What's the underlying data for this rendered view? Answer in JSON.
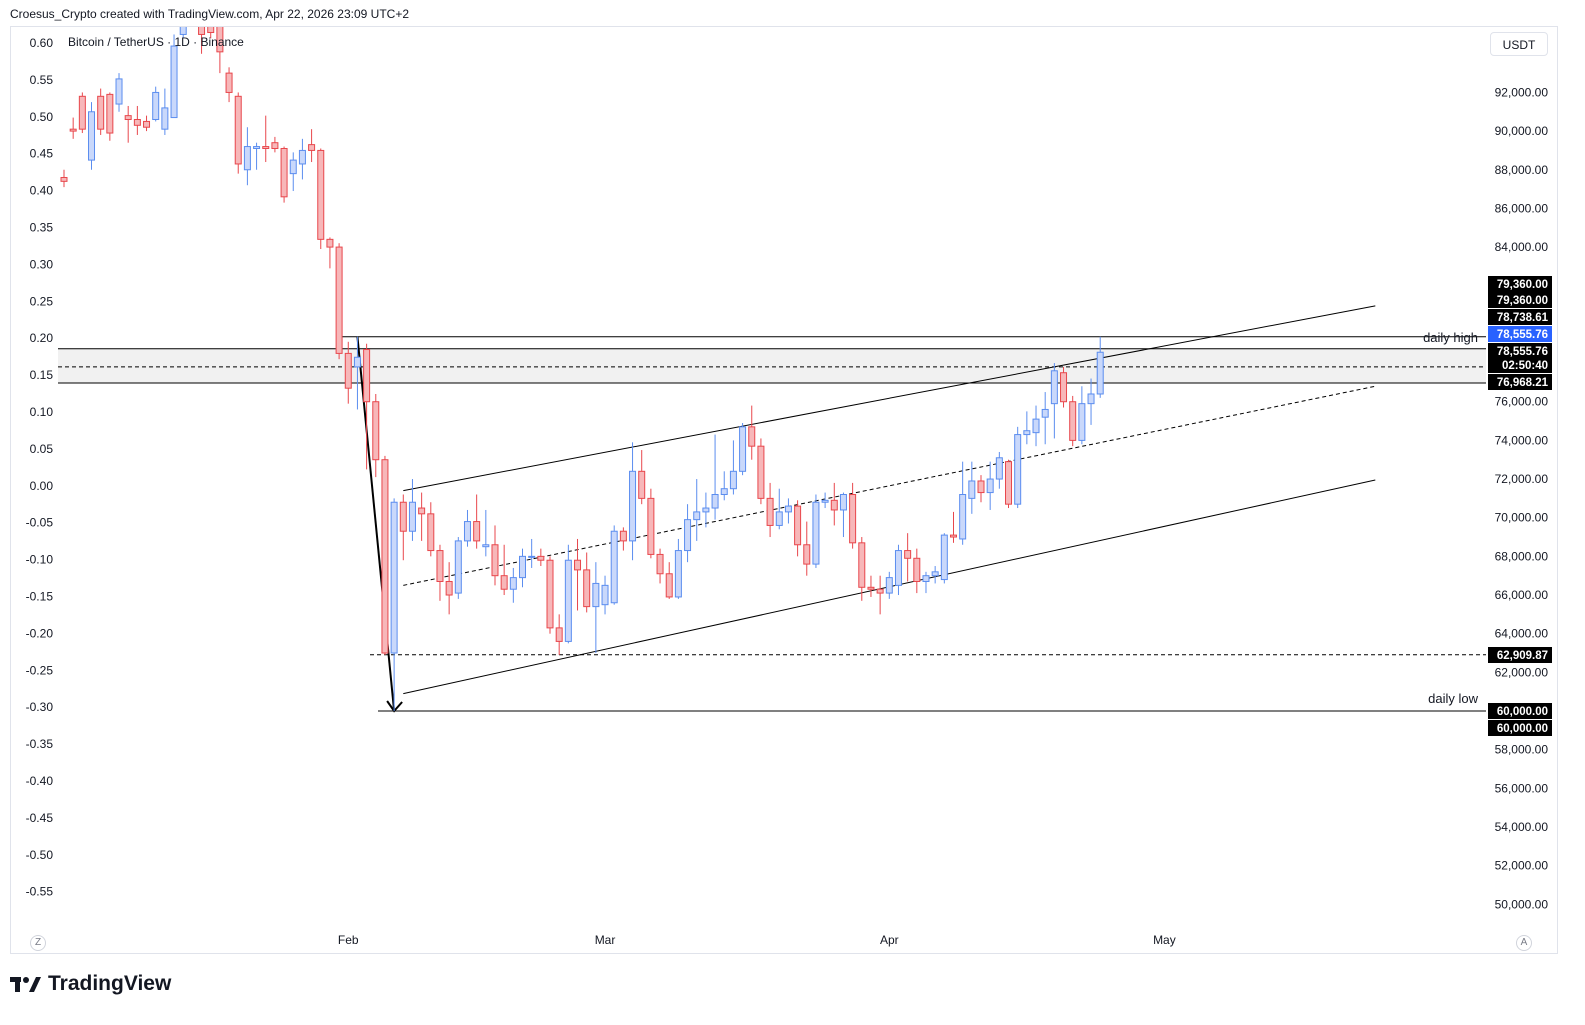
{
  "header": {
    "text": "Croesus_Crypto created with TradingView.com, Apr 22, 2026 23:09 UTC+2"
  },
  "legend": {
    "symbol": "Bitcoin / TetherUS · 1D · Binance"
  },
  "currency_button": "USDT",
  "footer": {
    "brand": "TradingView"
  },
  "corner_left": "Z",
  "corner_right": "A",
  "colors": {
    "up": "#5b8def",
    "up_fill": "#c9d8fb",
    "down": "#e8474c",
    "down_fill": "#f7b7b9",
    "zone": "#e6e6e6",
    "price_tag": "#000000",
    "current_tag": "#2962ff"
  },
  "chart_data": {
    "type": "candlestick",
    "left_axis": {
      "ticks": [
        "0.60",
        "0.55",
        "0.50",
        "0.45",
        "0.40",
        "0.35",
        "0.30",
        "0.25",
        "0.20",
        "0.15",
        "0.10",
        "0.05",
        "0.00",
        "-0.05",
        "-0.10",
        "-0.15",
        "-0.20",
        "-0.25",
        "-0.30",
        "-0.35",
        "-0.40",
        "-0.45",
        "-0.50",
        "-0.55"
      ]
    },
    "right_axis": {
      "ticks": [
        "92,000.00",
        "90,000.00",
        "88,000.00",
        "86,000.00",
        "84,000.00",
        "76,000.00",
        "74,000.00",
        "72,000.00",
        "70,000.00",
        "68,000.00",
        "66,000.00",
        "64,000.00",
        "62,000.00",
        "58,000.00",
        "56,000.00",
        "54,000.00",
        "52,000.00",
        "50,000.00"
      ],
      "price_labels": [
        {
          "text": "79,360.00",
          "value": 79360,
          "style": "black"
        },
        {
          "text": "79,360.00",
          "value": 79360,
          "style": "black"
        },
        {
          "text": "78,738.61",
          "value": 78738.61,
          "style": "black"
        },
        {
          "text": "78,555.76",
          "value": 78555.76,
          "style": "blue"
        },
        {
          "text": "78,555.76",
          "value": 78555.76,
          "style": "black"
        },
        {
          "text": "02:50:40",
          "value": null,
          "style": "black"
        },
        {
          "text": "76,968.21",
          "value": 76968.21,
          "style": "black"
        },
        {
          "text": "62,909.87",
          "value": 62909.87,
          "style": "black"
        },
        {
          "text": "60,000.00",
          "value": 60000,
          "style": "black"
        },
        {
          "text": "60,000.00",
          "value": 60000,
          "style": "black"
        }
      ]
    },
    "x_axis": {
      "labels": [
        "Feb",
        "Mar",
        "Apr",
        "May"
      ]
    },
    "annotations": [
      {
        "text": "daily high",
        "value": 79360
      },
      {
        "text": "daily low",
        "value": 60000
      }
    ],
    "zone": {
      "top": 78738.61,
      "mid": 77800,
      "bottom": 76968.21
    },
    "candles": [
      {
        "date": "2026-01-01",
        "o": 87600,
        "h": 88000,
        "l": 87100,
        "c": 87400
      },
      {
        "date": "2026-01-02",
        "o": 90100,
        "h": 90700,
        "l": 89600,
        "c": 90000
      },
      {
        "date": "2026-01-03",
        "o": 91800,
        "h": 92000,
        "l": 89900,
        "c": 90100
      },
      {
        "date": "2026-01-04",
        "o": 88500,
        "h": 91500,
        "l": 88000,
        "c": 91000
      },
      {
        "date": "2026-01-05",
        "o": 91800,
        "h": 92200,
        "l": 89800,
        "c": 90100
      },
      {
        "date": "2026-01-06",
        "o": 91900,
        "h": 92000,
        "l": 89500,
        "c": 89900
      },
      {
        "date": "2026-01-07",
        "o": 91400,
        "h": 93000,
        "l": 91000,
        "c": 92700
      },
      {
        "date": "2026-01-08",
        "o": 90800,
        "h": 91300,
        "l": 89400,
        "c": 90600
      },
      {
        "date": "2026-01-09",
        "o": 90600,
        "h": 91300,
        "l": 89800,
        "c": 90300
      },
      {
        "date": "2026-01-10",
        "o": 90500,
        "h": 90800,
        "l": 90000,
        "c": 90200
      },
      {
        "date": "2026-01-11",
        "o": 90600,
        "h": 92300,
        "l": 90500,
        "c": 92000
      },
      {
        "date": "2026-01-12",
        "o": 90100,
        "h": 92200,
        "l": 89800,
        "c": 91200
      },
      {
        "date": "2026-01-13",
        "o": 90700,
        "h": 95000,
        "l": 90700,
        "c": 94400
      },
      {
        "date": "2026-01-14",
        "o": 95000,
        "h": 97200,
        "l": 94800,
        "c": 96800
      },
      {
        "date": "2026-01-15",
        "o": 96300,
        "h": 97700,
        "l": 95600,
        "c": 96800
      },
      {
        "date": "2026-01-16",
        "o": 95600,
        "h": 96400,
        "l": 94000,
        "c": 95000
      },
      {
        "date": "2026-01-17",
        "o": 95700,
        "h": 96900,
        "l": 94800,
        "c": 95100
      },
      {
        "date": "2026-01-18",
        "o": 95500,
        "h": 96100,
        "l": 93000,
        "c": 94100
      },
      {
        "date": "2026-01-19",
        "o": 93000,
        "h": 93300,
        "l": 91500,
        "c": 92000
      },
      {
        "date": "2026-01-20",
        "o": 91800,
        "h": 92000,
        "l": 87800,
        "c": 88300
      },
      {
        "date": "2026-01-21",
        "o": 88000,
        "h": 90200,
        "l": 87200,
        "c": 89200
      },
      {
        "date": "2026-01-22",
        "o": 89100,
        "h": 89400,
        "l": 88000,
        "c": 89200
      },
      {
        "date": "2026-01-23",
        "o": 89200,
        "h": 90800,
        "l": 88400,
        "c": 89100
      },
      {
        "date": "2026-01-24",
        "o": 89400,
        "h": 89700,
        "l": 88900,
        "c": 89100
      },
      {
        "date": "2026-01-25",
        "o": 89100,
        "h": 89200,
        "l": 86300,
        "c": 86600
      },
      {
        "date": "2026-01-26",
        "o": 87800,
        "h": 88900,
        "l": 86900,
        "c": 88500
      },
      {
        "date": "2026-01-27",
        "o": 88300,
        "h": 89600,
        "l": 87500,
        "c": 89000
      },
      {
        "date": "2026-01-28",
        "o": 89300,
        "h": 90100,
        "l": 88400,
        "c": 89000
      },
      {
        "date": "2026-01-29",
        "o": 89000,
        "h": 89100,
        "l": 83900,
        "c": 84400
      },
      {
        "date": "2026-01-30",
        "o": 84400,
        "h": 84500,
        "l": 82900,
        "c": 84000
      },
      {
        "date": "2026-01-31",
        "o": 84000,
        "h": 84200,
        "l": 78200,
        "c": 78500
      },
      {
        "date": "2026-02-01",
        "o": 78500,
        "h": 79100,
        "l": 75900,
        "c": 76700
      },
      {
        "date": "2026-02-02",
        "o": 77800,
        "h": 79360,
        "l": 75600,
        "c": 78300
      },
      {
        "date": "2026-02-03",
        "o": 78700,
        "h": 79000,
        "l": 72500,
        "c": 76000
      },
      {
        "date": "2026-02-04",
        "o": 76000,
        "h": 76400,
        "l": 72100,
        "c": 73000
      },
      {
        "date": "2026-02-05",
        "o": 73000,
        "h": 73200,
        "l": 62900,
        "c": 63000
      },
      {
        "date": "2026-02-06",
        "o": 63000,
        "h": 71000,
        "l": 60000,
        "c": 70800
      },
      {
        "date": "2026-02-07",
        "o": 70800,
        "h": 71200,
        "l": 67800,
        "c": 69300
      },
      {
        "date": "2026-02-08",
        "o": 69300,
        "h": 72000,
        "l": 68800,
        "c": 70800
      },
      {
        "date": "2026-02-09",
        "o": 70500,
        "h": 71300,
        "l": 68800,
        "c": 70200
      },
      {
        "date": "2026-02-10",
        "o": 70200,
        "h": 70800,
        "l": 68000,
        "c": 68300
      },
      {
        "date": "2026-02-11",
        "o": 68300,
        "h": 68600,
        "l": 65700,
        "c": 66700
      },
      {
        "date": "2026-02-12",
        "o": 66700,
        "h": 67700,
        "l": 65000,
        "c": 66000
      },
      {
        "date": "2026-02-13",
        "o": 66100,
        "h": 69000,
        "l": 65800,
        "c": 68800
      },
      {
        "date": "2026-02-14",
        "o": 68800,
        "h": 70400,
        "l": 68500,
        "c": 69800
      },
      {
        "date": "2026-02-15",
        "o": 69800,
        "h": 71200,
        "l": 68400,
        "c": 68800
      },
      {
        "date": "2026-02-16",
        "o": 68500,
        "h": 70400,
        "l": 68000,
        "c": 68600
      },
      {
        "date": "2026-02-17",
        "o": 68600,
        "h": 69600,
        "l": 66500,
        "c": 67000
      },
      {
        "date": "2026-02-18",
        "o": 67000,
        "h": 68600,
        "l": 66000,
        "c": 66300
      },
      {
        "date": "2026-02-19",
        "o": 66300,
        "h": 67400,
        "l": 65600,
        "c": 66900
      },
      {
        "date": "2026-02-20",
        "o": 66900,
        "h": 68400,
        "l": 66400,
        "c": 68000
      },
      {
        "date": "2026-02-21",
        "o": 68000,
        "h": 68900,
        "l": 67400,
        "c": 68000
      },
      {
        "date": "2026-02-22",
        "o": 68000,
        "h": 68400,
        "l": 67500,
        "c": 67800
      },
      {
        "date": "2026-02-23",
        "o": 67800,
        "h": 68000,
        "l": 64000,
        "c": 64300
      },
      {
        "date": "2026-02-24",
        "o": 64300,
        "h": 65000,
        "l": 62900,
        "c": 63600
      },
      {
        "date": "2026-02-25",
        "o": 63600,
        "h": 68600,
        "l": 63500,
        "c": 67800
      },
      {
        "date": "2026-02-26",
        "o": 67800,
        "h": 68900,
        "l": 65200,
        "c": 67300
      },
      {
        "date": "2026-02-27",
        "o": 67300,
        "h": 68200,
        "l": 65100,
        "c": 65400
      },
      {
        "date": "2026-02-28",
        "o": 65400,
        "h": 67700,
        "l": 63000,
        "c": 66600
      },
      {
        "date": "2026-03-01",
        "o": 65500,
        "h": 67000,
        "l": 65000,
        "c": 66500
      },
      {
        "date": "2026-03-02",
        "o": 65600,
        "h": 69600,
        "l": 65500,
        "c": 69300
      },
      {
        "date": "2026-03-03",
        "o": 69300,
        "h": 69500,
        "l": 68300,
        "c": 68800
      },
      {
        "date": "2026-03-04",
        "o": 68800,
        "h": 73900,
        "l": 67800,
        "c": 72400
      },
      {
        "date": "2026-03-05",
        "o": 72400,
        "h": 73500,
        "l": 70700,
        "c": 71000
      },
      {
        "date": "2026-03-06",
        "o": 71000,
        "h": 71500,
        "l": 67900,
        "c": 68100
      },
      {
        "date": "2026-03-07",
        "o": 68100,
        "h": 68400,
        "l": 66600,
        "c": 67100
      },
      {
        "date": "2026-03-08",
        "o": 67100,
        "h": 67700,
        "l": 65800,
        "c": 65900
      },
      {
        "date": "2026-03-09",
        "o": 65900,
        "h": 68900,
        "l": 65800,
        "c": 68300
      },
      {
        "date": "2026-03-10",
        "o": 68300,
        "h": 70700,
        "l": 67700,
        "c": 69900
      },
      {
        "date": "2026-03-11",
        "o": 69900,
        "h": 72000,
        "l": 68800,
        "c": 70300
      },
      {
        "date": "2026-03-12",
        "o": 70300,
        "h": 71300,
        "l": 69500,
        "c": 70500
      },
      {
        "date": "2026-03-13",
        "o": 70500,
        "h": 74300,
        "l": 69900,
        "c": 71200
      },
      {
        "date": "2026-03-14",
        "o": 71200,
        "h": 72400,
        "l": 70900,
        "c": 71500
      },
      {
        "date": "2026-03-15",
        "o": 71500,
        "h": 74000,
        "l": 71200,
        "c": 72400
      },
      {
        "date": "2026-03-16",
        "o": 72400,
        "h": 74900,
        "l": 72200,
        "c": 74700
      },
      {
        "date": "2026-03-17",
        "o": 74700,
        "h": 75800,
        "l": 73000,
        "c": 73700
      },
      {
        "date": "2026-03-18",
        "o": 73700,
        "h": 74100,
        "l": 70700,
        "c": 71000
      },
      {
        "date": "2026-03-19",
        "o": 71000,
        "h": 71800,
        "l": 69000,
        "c": 69600
      },
      {
        "date": "2026-03-20",
        "o": 69600,
        "h": 71500,
        "l": 69400,
        "c": 70300
      },
      {
        "date": "2026-03-21",
        "o": 70300,
        "h": 71000,
        "l": 69700,
        "c": 70600
      },
      {
        "date": "2026-03-22",
        "o": 70600,
        "h": 70900,
        "l": 68000,
        "c": 68600
      },
      {
        "date": "2026-03-23",
        "o": 68600,
        "h": 69800,
        "l": 67000,
        "c": 67600
      },
      {
        "date": "2026-03-24",
        "o": 67600,
        "h": 71200,
        "l": 67400,
        "c": 70800
      },
      {
        "date": "2026-03-25",
        "o": 70800,
        "h": 71300,
        "l": 70500,
        "c": 70900
      },
      {
        "date": "2026-03-26",
        "o": 70900,
        "h": 71800,
        "l": 69600,
        "c": 70400
      },
      {
        "date": "2026-03-27",
        "o": 70400,
        "h": 71300,
        "l": 69000,
        "c": 71200
      },
      {
        "date": "2026-03-28",
        "o": 71200,
        "h": 71800,
        "l": 68400,
        "c": 68700
      },
      {
        "date": "2026-03-29",
        "o": 68700,
        "h": 69000,
        "l": 65700,
        "c": 66400
      },
      {
        "date": "2026-03-30",
        "o": 66400,
        "h": 67000,
        "l": 65900,
        "c": 66300
      },
      {
        "date": "2026-03-31",
        "o": 66300,
        "h": 67000,
        "l": 65000,
        "c": 66100
      },
      {
        "date": "2026-04-01",
        "o": 66100,
        "h": 67200,
        "l": 65800,
        "c": 66900
      },
      {
        "date": "2026-04-02",
        "o": 66500,
        "h": 68600,
        "l": 66000,
        "c": 68300
      },
      {
        "date": "2026-04-03",
        "o": 68300,
        "h": 69200,
        "l": 66700,
        "c": 67900
      },
      {
        "date": "2026-04-04",
        "o": 67900,
        "h": 68400,
        "l": 66100,
        "c": 66700
      },
      {
        "date": "2026-04-05",
        "o": 66700,
        "h": 67200,
        "l": 66100,
        "c": 67000
      },
      {
        "date": "2026-04-06",
        "o": 67000,
        "h": 67500,
        "l": 66600,
        "c": 67200
      },
      {
        "date": "2026-04-07",
        "o": 66800,
        "h": 69200,
        "l": 66600,
        "c": 69100
      },
      {
        "date": "2026-04-08",
        "o": 69100,
        "h": 70300,
        "l": 68700,
        "c": 69000
      },
      {
        "date": "2026-04-09",
        "o": 68900,
        "h": 72900,
        "l": 68600,
        "c": 71200
      },
      {
        "date": "2026-04-10",
        "o": 71000,
        "h": 72900,
        "l": 70200,
        "c": 71900
      },
      {
        "date": "2026-04-11",
        "o": 71900,
        "h": 72200,
        "l": 70800,
        "c": 71300
      },
      {
        "date": "2026-04-12",
        "o": 71300,
        "h": 72900,
        "l": 70400,
        "c": 72000
      },
      {
        "date": "2026-04-13",
        "o": 72000,
        "h": 73400,
        "l": 71500,
        "c": 73100
      },
      {
        "date": "2026-04-14",
        "o": 72900,
        "h": 73000,
        "l": 70500,
        "c": 70700
      },
      {
        "date": "2026-04-15",
        "o": 70700,
        "h": 74700,
        "l": 70500,
        "c": 74300
      },
      {
        "date": "2026-04-16",
        "o": 74300,
        "h": 75500,
        "l": 73800,
        "c": 74500
      },
      {
        "date": "2026-04-17",
        "o": 74400,
        "h": 75800,
        "l": 73700,
        "c": 75100
      },
      {
        "date": "2026-04-18",
        "o": 75200,
        "h": 76500,
        "l": 73800,
        "c": 75600
      },
      {
        "date": "2026-04-19",
        "o": 75900,
        "h": 78000,
        "l": 74100,
        "c": 77600
      },
      {
        "date": "2026-04-20",
        "o": 77500,
        "h": 77800,
        "l": 75700,
        "c": 76000
      },
      {
        "date": "2026-04-21",
        "o": 76000,
        "h": 76300,
        "l": 73700,
        "c": 74000
      },
      {
        "date": "2026-04-22",
        "o": 74000,
        "h": 76800,
        "l": 73800,
        "c": 75900
      },
      {
        "date": "2026-04-23",
        "o": 75900,
        "h": 77200,
        "l": 74800,
        "c": 76400
      },
      {
        "date": "2026-04-24",
        "o": 76400,
        "h": 79360,
        "l": 76200,
        "c": 78560
      }
    ]
  }
}
